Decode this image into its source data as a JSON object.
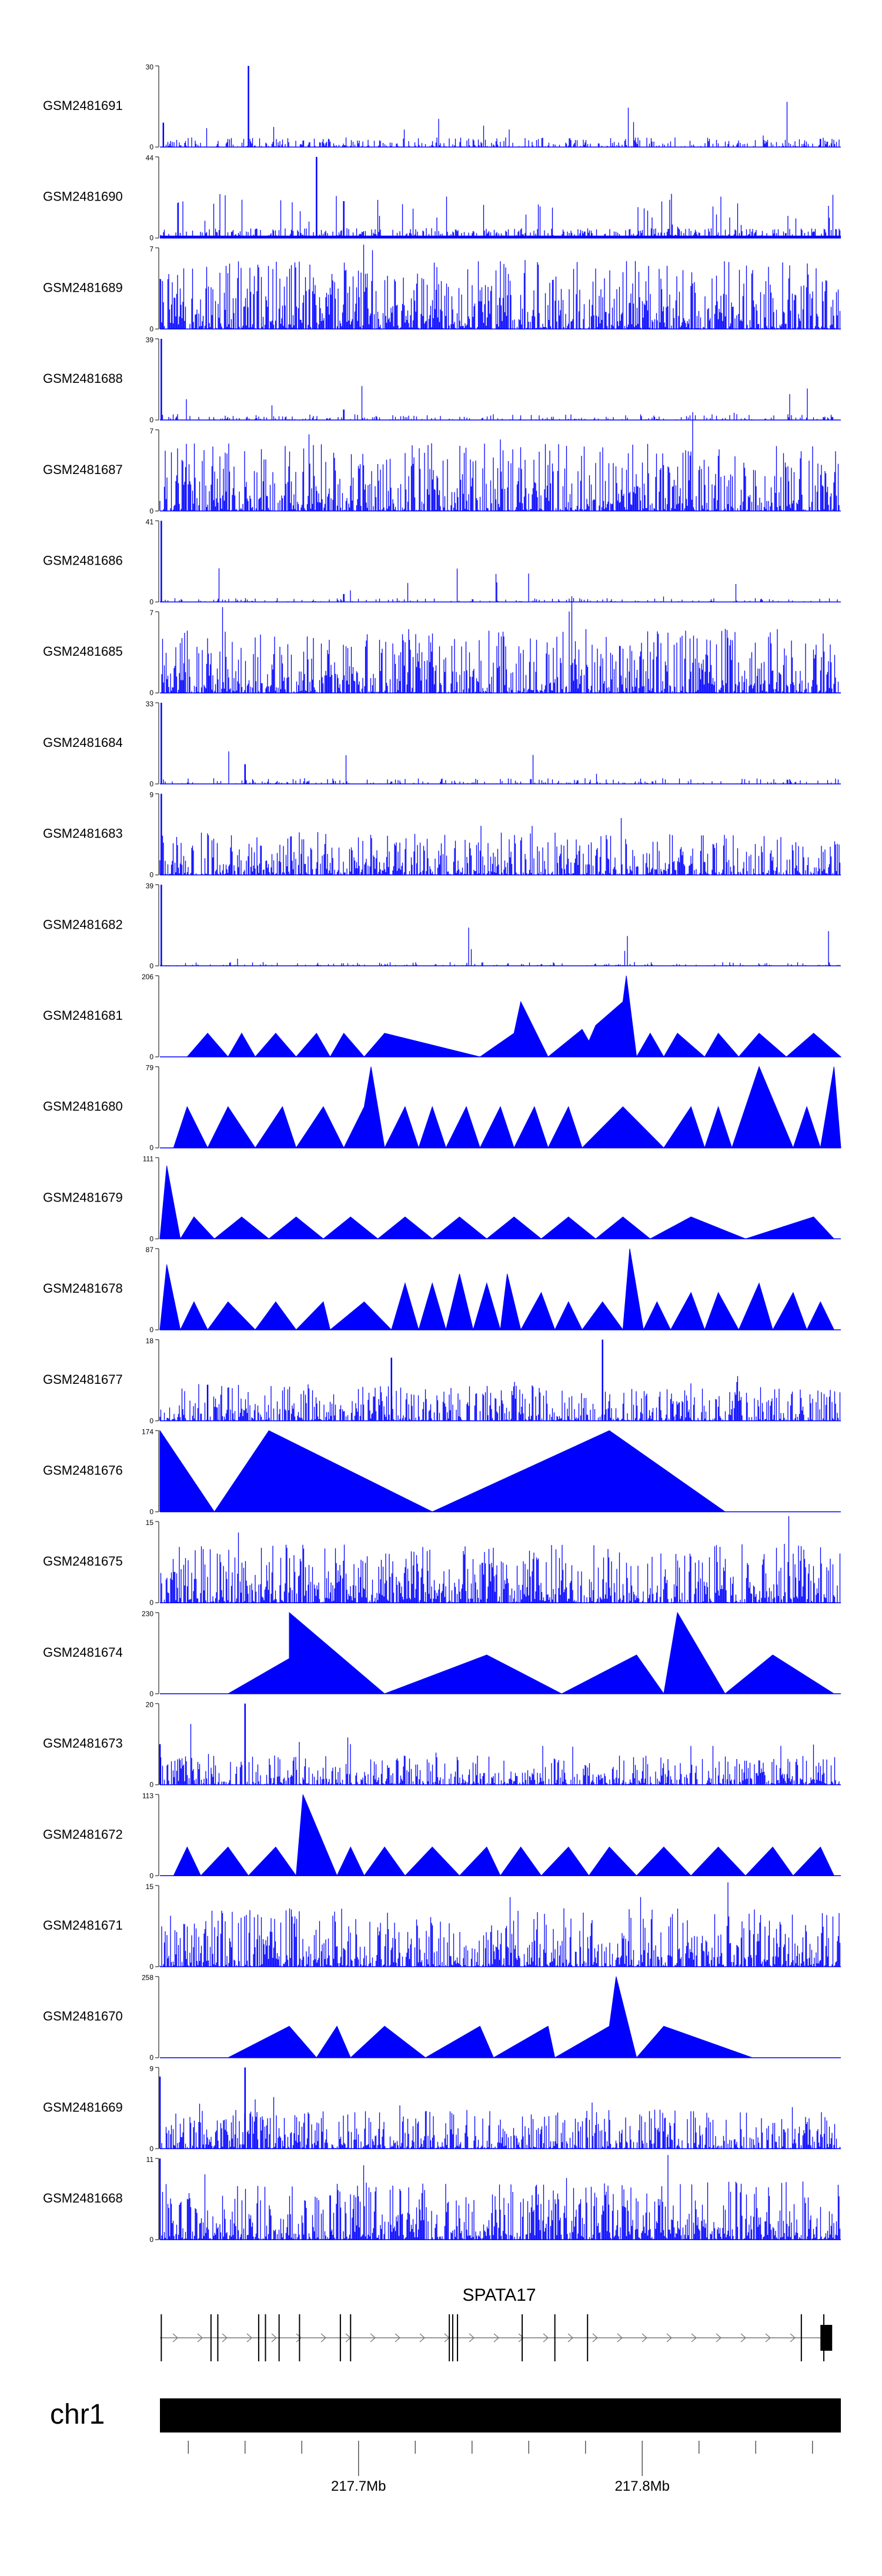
{
  "chart_data": {
    "type": "area",
    "title": "",
    "color": "#0000ff",
    "tracks": [
      {
        "name": "GSM2481691",
        "ymax": 30,
        "shape": "noise",
        "peaks": [
          [
            0.13,
            30
          ],
          [
            0.005,
            9
          ],
          [
            0.97,
            3
          ]
        ],
        "base": 0.05,
        "density": 0.6,
        "seed": 11
      },
      {
        "name": "GSM2481690",
        "ymax": 44,
        "shape": "spiky",
        "peaks": [
          [
            0.23,
            44
          ],
          [
            0.27,
            20
          ]
        ],
        "base": 0.05,
        "seed": 12
      },
      {
        "name": "GSM2481689",
        "ymax": 7,
        "shape": "noise",
        "peaks": [],
        "base": 0.35,
        "density": 0.95,
        "seed": 13
      },
      {
        "name": "GSM2481688",
        "ymax": 39,
        "shape": "noise",
        "peaks": [
          [
            0.002,
            39
          ],
          [
            0.27,
            5
          ]
        ],
        "base": 0.03,
        "density": 0.4,
        "seed": 14
      },
      {
        "name": "GSM2481687",
        "ymax": 7,
        "shape": "noise",
        "peaks": [],
        "base": 0.35,
        "density": 0.95,
        "seed": 15
      },
      {
        "name": "GSM2481686",
        "ymax": 41,
        "shape": "noise",
        "peaks": [
          [
            0.002,
            41
          ],
          [
            0.27,
            4
          ]
        ],
        "base": 0.02,
        "density": 0.3,
        "seed": 16
      },
      {
        "name": "GSM2481685",
        "ymax": 7,
        "shape": "noise",
        "peaks": [],
        "base": 0.33,
        "density": 0.95,
        "seed": 17
      },
      {
        "name": "GSM2481684",
        "ymax": 33,
        "shape": "noise",
        "peaks": [
          [
            0.002,
            33
          ],
          [
            0.125,
            8
          ]
        ],
        "base": 0.03,
        "density": 0.4,
        "seed": 18
      },
      {
        "name": "GSM2481683",
        "ymax": 9,
        "shape": "noise",
        "peaks": [
          [
            0.002,
            9
          ]
        ],
        "base": 0.22,
        "density": 0.9,
        "seed": 19
      },
      {
        "name": "GSM2481682",
        "ymax": 39,
        "shape": "noise",
        "peaks": [
          [
            0.002,
            39
          ]
        ],
        "base": 0.02,
        "density": 0.3,
        "seed": 20
      },
      {
        "name": "GSM2481681",
        "ymax": 206,
        "shape": "tri",
        "peaks": [
          [
            0.04,
            0
          ],
          [
            0.07,
            60
          ],
          [
            0.1,
            0
          ],
          [
            0.12,
            60
          ],
          [
            0.14,
            0
          ],
          [
            0.17,
            60
          ],
          [
            0.2,
            0
          ],
          [
            0.23,
            60
          ],
          [
            0.25,
            0
          ],
          [
            0.27,
            60
          ],
          [
            0.3,
            0
          ],
          [
            0.33,
            60
          ],
          [
            0.4,
            30
          ],
          [
            0.47,
            0
          ],
          [
            0.52,
            60
          ],
          [
            0.53,
            140
          ],
          [
            0.57,
            0
          ],
          [
            0.62,
            70
          ],
          [
            0.63,
            40
          ],
          [
            0.64,
            80
          ],
          [
            0.68,
            140
          ],
          [
            0.685,
            206
          ],
          [
            0.7,
            0
          ],
          [
            0.72,
            60
          ],
          [
            0.74,
            0
          ],
          [
            0.76,
            60
          ],
          [
            0.8,
            0
          ],
          [
            0.82,
            60
          ],
          [
            0.85,
            0
          ],
          [
            0.88,
            60
          ],
          [
            0.92,
            0
          ],
          [
            0.96,
            60
          ],
          [
            1.0,
            0
          ]
        ],
        "seed": 21
      },
      {
        "name": "GSM2481680",
        "ymax": 79,
        "shape": "tri",
        "peaks": [
          [
            0.02,
            0
          ],
          [
            0.04,
            40
          ],
          [
            0.07,
            0
          ],
          [
            0.1,
            40
          ],
          [
            0.14,
            0
          ],
          [
            0.18,
            40
          ],
          [
            0.2,
            0
          ],
          [
            0.24,
            40
          ],
          [
            0.27,
            0
          ],
          [
            0.3,
            40
          ],
          [
            0.31,
            79
          ],
          [
            0.33,
            0
          ],
          [
            0.36,
            40
          ],
          [
            0.38,
            0
          ],
          [
            0.4,
            40
          ],
          [
            0.42,
            0
          ],
          [
            0.45,
            40
          ],
          [
            0.47,
            0
          ],
          [
            0.5,
            40
          ],
          [
            0.52,
            0
          ],
          [
            0.55,
            40
          ],
          [
            0.57,
            0
          ],
          [
            0.6,
            40
          ],
          [
            0.62,
            0
          ],
          [
            0.68,
            40
          ],
          [
            0.74,
            0
          ],
          [
            0.78,
            40
          ],
          [
            0.8,
            0
          ],
          [
            0.82,
            40
          ],
          [
            0.84,
            0
          ],
          [
            0.88,
            79
          ],
          [
            0.93,
            0
          ],
          [
            0.95,
            40
          ],
          [
            0.97,
            0
          ],
          [
            0.99,
            79
          ],
          [
            1.0,
            0
          ]
        ],
        "seed": 22
      },
      {
        "name": "GSM2481679",
        "ymax": 111,
        "shape": "tri",
        "peaks": [
          [
            0.0,
            0
          ],
          [
            0.01,
            100
          ],
          [
            0.03,
            0
          ],
          [
            0.05,
            30
          ],
          [
            0.08,
            0
          ],
          [
            0.12,
            30
          ],
          [
            0.16,
            0
          ],
          [
            0.2,
            30
          ],
          [
            0.24,
            0
          ],
          [
            0.28,
            30
          ],
          [
            0.32,
            0
          ],
          [
            0.36,
            30
          ],
          [
            0.4,
            0
          ],
          [
            0.44,
            30
          ],
          [
            0.48,
            0
          ],
          [
            0.52,
            30
          ],
          [
            0.56,
            0
          ],
          [
            0.6,
            30
          ],
          [
            0.64,
            0
          ],
          [
            0.68,
            30
          ],
          [
            0.72,
            0
          ],
          [
            0.78,
            30
          ],
          [
            0.86,
            0
          ],
          [
            0.96,
            30
          ],
          [
            0.99,
            0
          ]
        ],
        "seed": 23
      },
      {
        "name": "GSM2481678",
        "ymax": 87,
        "shape": "tri",
        "peaks": [
          [
            0.0,
            0
          ],
          [
            0.01,
            70
          ],
          [
            0.03,
            0
          ],
          [
            0.05,
            30
          ],
          [
            0.07,
            0
          ],
          [
            0.1,
            30
          ],
          [
            0.14,
            0
          ],
          [
            0.17,
            30
          ],
          [
            0.2,
            0
          ],
          [
            0.24,
            30
          ],
          [
            0.25,
            0
          ],
          [
            0.3,
            30
          ],
          [
            0.34,
            0
          ],
          [
            0.36,
            50
          ],
          [
            0.38,
            0
          ],
          [
            0.4,
            50
          ],
          [
            0.42,
            0
          ],
          [
            0.44,
            60
          ],
          [
            0.46,
            0
          ],
          [
            0.48,
            50
          ],
          [
            0.5,
            0
          ],
          [
            0.51,
            60
          ],
          [
            0.53,
            0
          ],
          [
            0.56,
            40
          ],
          [
            0.58,
            0
          ],
          [
            0.6,
            30
          ],
          [
            0.62,
            0
          ],
          [
            0.65,
            30
          ],
          [
            0.68,
            0
          ],
          [
            0.69,
            87
          ],
          [
            0.71,
            0
          ],
          [
            0.73,
            30
          ],
          [
            0.75,
            0
          ],
          [
            0.78,
            40
          ],
          [
            0.8,
            0
          ],
          [
            0.82,
            40
          ],
          [
            0.85,
            0
          ],
          [
            0.88,
            50
          ],
          [
            0.9,
            0
          ],
          [
            0.93,
            40
          ],
          [
            0.95,
            0
          ],
          [
            0.97,
            30
          ],
          [
            0.99,
            0
          ]
        ],
        "seed": 24
      },
      {
        "name": "GSM2481677",
        "ymax": 18,
        "shape": "noise",
        "peaks": [
          [
            0.34,
            14
          ],
          [
            0.65,
            18
          ],
          [
            0.07,
            8
          ]
        ],
        "base": 0.18,
        "density": 0.85,
        "seed": 25
      },
      {
        "name": "GSM2481676",
        "ymax": 174,
        "shape": "tri",
        "peaks": [
          [
            0.0,
            174
          ],
          [
            0.08,
            0
          ],
          [
            0.16,
            174
          ],
          [
            0.4,
            0
          ],
          [
            0.66,
            174
          ],
          [
            0.83,
            0
          ]
        ],
        "seed": 26
      },
      {
        "name": "GSM2481675",
        "ymax": 15,
        "shape": "noise",
        "peaks": [],
        "base": 0.3,
        "density": 0.95,
        "seed": 27
      },
      {
        "name": "GSM2481674",
        "ymax": 230,
        "shape": "tri",
        "peaks": [
          [
            0.1,
            0
          ],
          [
            0.19,
            100
          ],
          [
            0.19,
            230
          ],
          [
            0.33,
            0
          ],
          [
            0.48,
            110
          ],
          [
            0.59,
            0
          ],
          [
            0.7,
            110
          ],
          [
            0.74,
            0
          ],
          [
            0.76,
            230
          ],
          [
            0.83,
            0
          ],
          [
            0.9,
            110
          ],
          [
            0.99,
            0
          ]
        ],
        "seed": 28
      },
      {
        "name": "GSM2481673",
        "ymax": 20,
        "shape": "noise",
        "peaks": [
          [
            0.125,
            20
          ],
          [
            0.0,
            10
          ]
        ],
        "base": 0.15,
        "density": 0.85,
        "seed": 29
      },
      {
        "name": "GSM2481672",
        "ymax": 113,
        "shape": "tri",
        "peaks": [
          [
            0.02,
            0
          ],
          [
            0.04,
            40
          ],
          [
            0.06,
            0
          ],
          [
            0.1,
            40
          ],
          [
            0.13,
            0
          ],
          [
            0.17,
            40
          ],
          [
            0.2,
            0
          ],
          [
            0.21,
            113
          ],
          [
            0.26,
            0
          ],
          [
            0.28,
            40
          ],
          [
            0.3,
            0
          ],
          [
            0.33,
            40
          ],
          [
            0.36,
            0
          ],
          [
            0.4,
            40
          ],
          [
            0.44,
            0
          ],
          [
            0.48,
            40
          ],
          [
            0.5,
            0
          ],
          [
            0.53,
            40
          ],
          [
            0.56,
            0
          ],
          [
            0.6,
            40
          ],
          [
            0.63,
            0
          ],
          [
            0.66,
            40
          ],
          [
            0.7,
            0
          ],
          [
            0.74,
            40
          ],
          [
            0.78,
            0
          ],
          [
            0.82,
            40
          ],
          [
            0.86,
            0
          ],
          [
            0.9,
            40
          ],
          [
            0.93,
            0
          ],
          [
            0.97,
            40
          ],
          [
            0.99,
            0
          ]
        ],
        "seed": 30
      },
      {
        "name": "GSM2481671",
        "ymax": 15,
        "shape": "noise",
        "peaks": [],
        "base": 0.3,
        "density": 0.95,
        "seed": 31
      },
      {
        "name": "GSM2481670",
        "ymax": 258,
        "shape": "tri",
        "peaks": [
          [
            0.1,
            0
          ],
          [
            0.19,
            100
          ],
          [
            0.23,
            0
          ],
          [
            0.26,
            100
          ],
          [
            0.28,
            0
          ],
          [
            0.33,
            100
          ],
          [
            0.39,
            0
          ],
          [
            0.47,
            100
          ],
          [
            0.49,
            0
          ],
          [
            0.57,
            100
          ],
          [
            0.58,
            0
          ],
          [
            0.66,
            100
          ],
          [
            0.67,
            258
          ],
          [
            0.7,
            0
          ],
          [
            0.74,
            100
          ],
          [
            0.87,
            0
          ]
        ],
        "seed": 32
      },
      {
        "name": "GSM2481669",
        "ymax": 9,
        "shape": "noise",
        "peaks": [
          [
            0.0,
            8
          ],
          [
            0.125,
            9
          ]
        ],
        "base": 0.2,
        "density": 0.9,
        "seed": 33
      },
      {
        "name": "GSM2481668",
        "ymax": 11,
        "shape": "noise",
        "peaks": [
          [
            0.0,
            11
          ],
          [
            0.25,
            6
          ]
        ],
        "base": 0.3,
        "density": 0.95,
        "seed": 34
      }
    ],
    "gene": {
      "name": "SPATA17",
      "exons": [
        0.002,
        0.075,
        0.085,
        0.145,
        0.155,
        0.175,
        0.205,
        0.265,
        0.28,
        0.425,
        0.43,
        0.437,
        0.532,
        0.58,
        0.628,
        0.942,
        0.975
      ],
      "utr": [
        0.97,
        0.985
      ]
    },
    "chromosome": {
      "name": "chr1",
      "xmin": 217.63,
      "xmax": 217.87,
      "tick_values": [
        217.64,
        217.66,
        217.68,
        217.7,
        217.72,
        217.74,
        217.76,
        217.78,
        217.8,
        217.82,
        217.84,
        217.86
      ],
      "labeled_ticks": [
        217.7,
        217.8
      ],
      "tick_labels": [
        "217.7Mb",
        "217.8Mb"
      ]
    }
  }
}
